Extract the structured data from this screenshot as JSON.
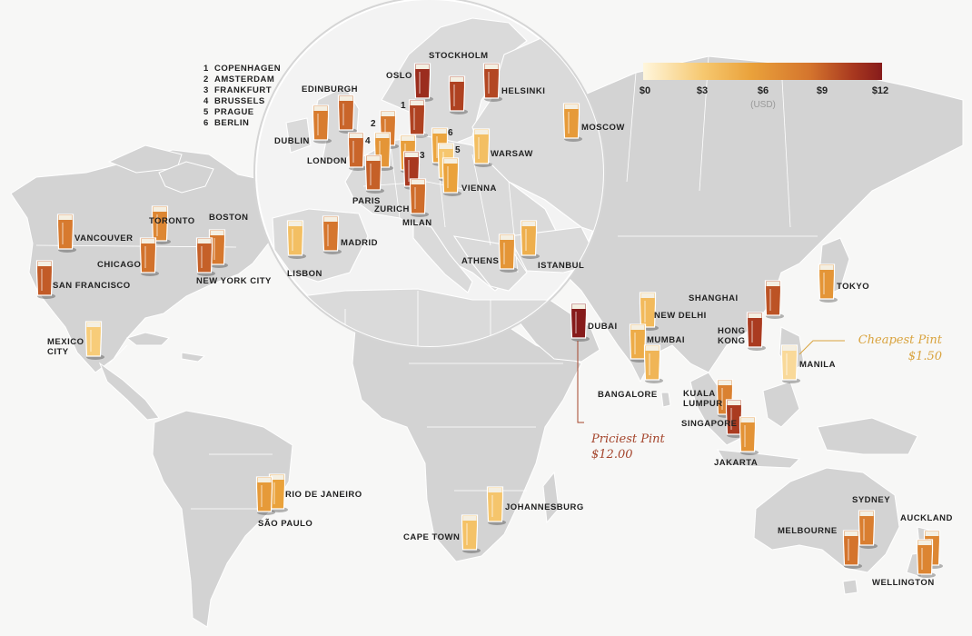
{
  "legend": {
    "ticks": [
      "$0",
      "$3",
      "$6",
      "$9",
      "$12"
    ],
    "unit": "(USD)",
    "scale_min": 0,
    "scale_max": 12,
    "colors": [
      "#fff6dc",
      "#f6c870",
      "#eaa23b",
      "#d4742d",
      "#a8381f",
      "#861b1b"
    ]
  },
  "key": [
    {
      "num": "1",
      "label": "COPENHAGEN"
    },
    {
      "num": "2",
      "label": "AMSTERDAM"
    },
    {
      "num": "3",
      "label": "FRANKFURT"
    },
    {
      "num": "4",
      "label": "BRUSSELS"
    },
    {
      "num": "5",
      "label": "PRAGUE"
    },
    {
      "num": "6",
      "label": "BERLIN"
    }
  ],
  "callouts": {
    "priciest": {
      "title": "Priciest Pint",
      "value": "$12.00",
      "color": "#a4442b"
    },
    "cheapest": {
      "title": "Cheapest Pint",
      "value": "$1.50",
      "color": "#d9a33e"
    }
  },
  "chart_data": {
    "type": "map",
    "unit": "USD",
    "value_range": [
      0,
      12
    ],
    "cities": [
      {
        "name": "OSLO",
        "value": 10.5
      },
      {
        "name": "STOCKHOLM",
        "value": 9.2
      },
      {
        "name": "HELSINKI",
        "value": 9.0
      },
      {
        "name": "EDINBURGH",
        "value": 7.8
      },
      {
        "name": "DUBLIN",
        "value": 6.8
      },
      {
        "name": "LONDON",
        "value": 7.8
      },
      {
        "name": "COPENHAGEN",
        "value": 9.2
      },
      {
        "name": "AMSTERDAM",
        "value": 6.9
      },
      {
        "name": "BRUSSELS",
        "value": 5.5
      },
      {
        "name": "FRANKFURT",
        "value": 5.0
      },
      {
        "name": "BERLIN",
        "value": 4.6
      },
      {
        "name": "PRAGUE",
        "value": 2.5
      },
      {
        "name": "WARSAW",
        "value": 3.0
      },
      {
        "name": "MOSCOW",
        "value": 5.2
      },
      {
        "name": "PARIS",
        "value": 8.0
      },
      {
        "name": "ZURICH",
        "value": 9.6
      },
      {
        "name": "MILAN",
        "value": 7.5
      },
      {
        "name": "VIENNA",
        "value": 4.8
      },
      {
        "name": "MADRID",
        "value": 7.1
      },
      {
        "name": "LISBON",
        "value": 3.0
      },
      {
        "name": "ATHENS",
        "value": 5.5
      },
      {
        "name": "ISTANBUL",
        "value": 4.0
      },
      {
        "name": "DUBAI",
        "value": 12.0
      },
      {
        "name": "NEW DELHI",
        "value": 3.3
      },
      {
        "name": "MUMBAI",
        "value": 4.2
      },
      {
        "name": "BANGALORE",
        "value": 3.6
      },
      {
        "name": "SHANGHAI",
        "value": 8.5
      },
      {
        "name": "HONG KONG",
        "value": 9.5
      },
      {
        "name": "TOKYO",
        "value": 5.5
      },
      {
        "name": "MANILA",
        "value": 1.5
      },
      {
        "name": "KUALA LUMPUR",
        "value": 6.5
      },
      {
        "name": "SINGAPORE",
        "value": 9.5
      },
      {
        "name": "JAKARTA",
        "value": 5.6
      },
      {
        "name": "SYDNEY",
        "value": 6.7
      },
      {
        "name": "MELBOURNE",
        "value": 7.2
      },
      {
        "name": "AUCKLAND",
        "value": 6.2
      },
      {
        "name": "WELLINGTON",
        "value": 6.3
      },
      {
        "name": "VANCOUVER",
        "value": 6.9
      },
      {
        "name": "TORONTO",
        "value": 6.2
      },
      {
        "name": "BOSTON",
        "value": 7.0
      },
      {
        "name": "CHICAGO",
        "value": 7.3
      },
      {
        "name": "NEW YORK CITY",
        "value": 8.0
      },
      {
        "name": "SAN FRANCISCO",
        "value": 8.2
      },
      {
        "name": "MEXICO CITY",
        "value": 2.2
      },
      {
        "name": "RIO DE JANEIRO",
        "value": 4.8
      },
      {
        "name": "SÃO PAULO",
        "value": 5.2
      },
      {
        "name": "JOHANNESBURG",
        "value": 2.6
      },
      {
        "name": "CAPE TOWN",
        "value": 2.8
      }
    ]
  }
}
